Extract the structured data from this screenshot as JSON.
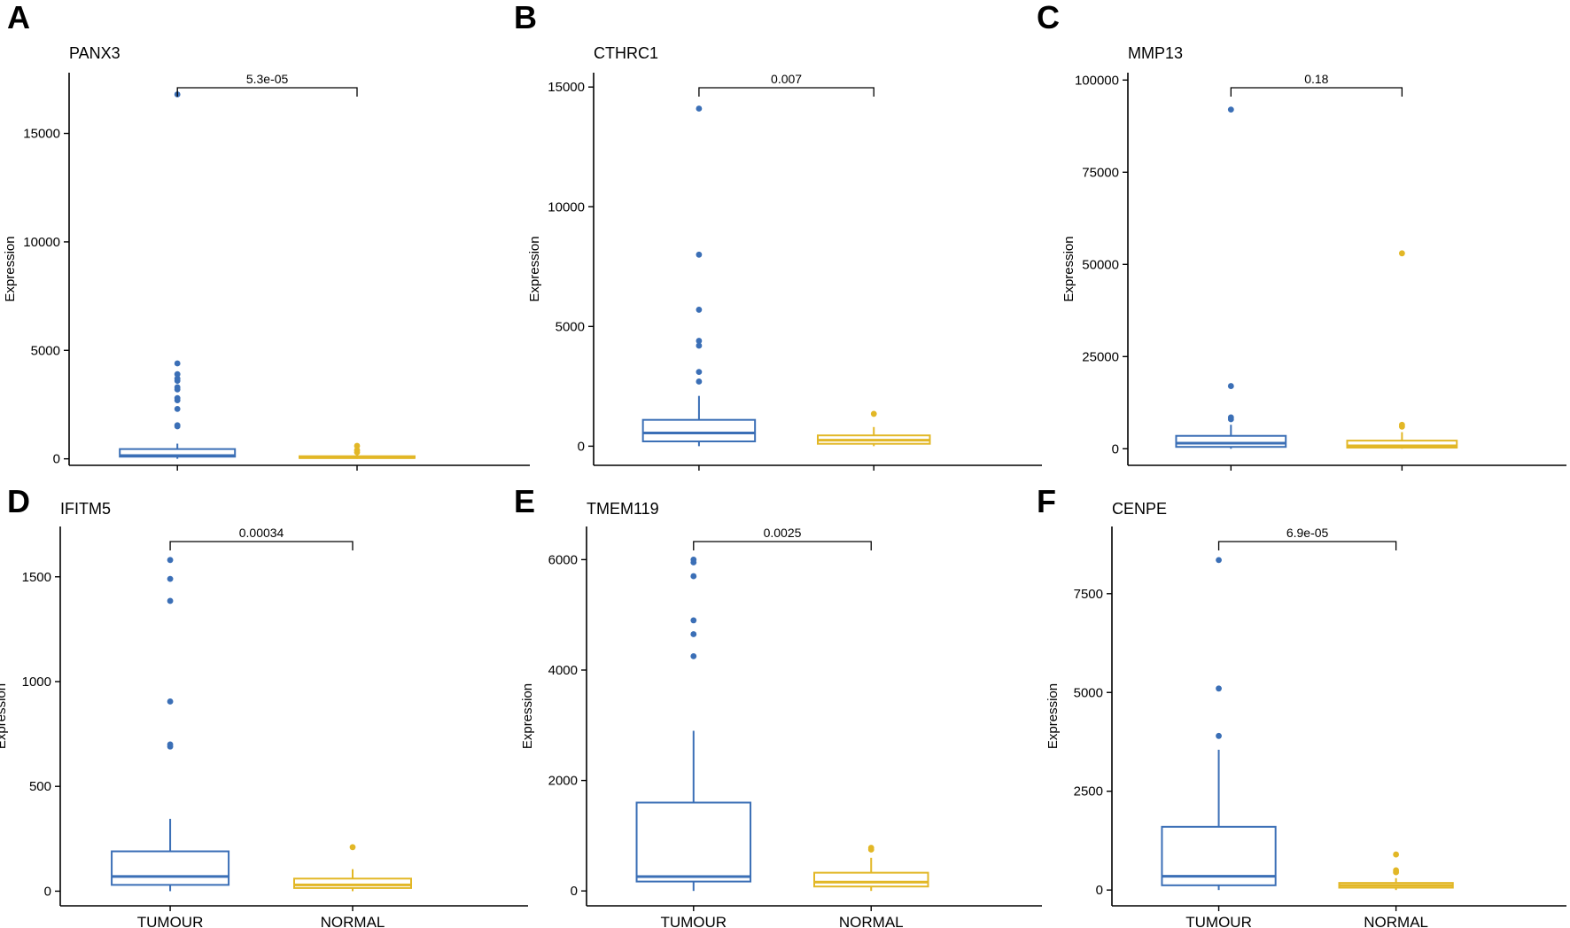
{
  "figure": {
    "colors": {
      "tumour": "#3b6fb6",
      "normal": "#e2b726",
      "axis": "#000000"
    }
  },
  "chart_data": [
    {
      "type": "box",
      "panel": "A",
      "title": "PANX3",
      "xlabel": "",
      "ylabel": "Expression",
      "ylim": [
        -300,
        17800
      ],
      "yticks": [
        0,
        5000,
        10000,
        15000
      ],
      "categories": [
        "TUMOUR",
        "NORMAL"
      ],
      "show_x_labels": false,
      "pvalue": "5.3e-05",
      "series": [
        {
          "name": "TUMOUR",
          "q1": 100,
          "median": 150,
          "q3": 450,
          "whisker_low": 0,
          "whisker_high": 700,
          "outliers": [
            1500,
            1550,
            2300,
            2700,
            2800,
            3200,
            3300,
            3600,
            3700,
            3900,
            4400,
            16800
          ]
        },
        {
          "name": "NORMAL",
          "q1": 40,
          "median": 60,
          "q3": 120,
          "whisker_low": 0,
          "whisker_high": 200,
          "outliers": [
            300,
            400,
            600
          ]
        }
      ]
    },
    {
      "type": "box",
      "panel": "B",
      "title": "CTHRC1",
      "xlabel": "",
      "ylabel": "Expression",
      "ylim": [
        -800,
        15600
      ],
      "yticks": [
        0,
        5000,
        10000,
        15000
      ],
      "categories": [
        "TUMOUR",
        "NORMAL"
      ],
      "show_x_labels": false,
      "pvalue": "0.007",
      "series": [
        {
          "name": "TUMOUR",
          "q1": 200,
          "median": 550,
          "q3": 1100,
          "whisker_low": 0,
          "whisker_high": 2100,
          "outliers": [
            2700,
            3100,
            4200,
            4400,
            5700,
            8000,
            14100
          ]
        },
        {
          "name": "NORMAL",
          "q1": 100,
          "median": 250,
          "q3": 450,
          "whisker_low": 0,
          "whisker_high": 800,
          "outliers": [
            1350
          ]
        }
      ]
    },
    {
      "type": "box",
      "panel": "C",
      "title": "MMP13",
      "xlabel": "",
      "ylabel": "Expression",
      "ylim": [
        -4500,
        102000
      ],
      "yticks": [
        0,
        25000,
        50000,
        75000,
        100000
      ],
      "categories": [
        "TUMOUR",
        "NORMAL"
      ],
      "show_x_labels": false,
      "pvalue": "0.18",
      "series": [
        {
          "name": "TUMOUR",
          "q1": 500,
          "median": 1500,
          "q3": 3500,
          "whisker_low": 0,
          "whisker_high": 6500,
          "outliers": [
            8000,
            8500,
            17000,
            92000
          ]
        },
        {
          "name": "NORMAL",
          "q1": 300,
          "median": 800,
          "q3": 2200,
          "whisker_low": 0,
          "whisker_high": 4500,
          "outliers": [
            6000,
            6500,
            53000
          ]
        }
      ]
    },
    {
      "type": "box",
      "panel": "D",
      "title": "IFITM5",
      "xlabel": "",
      "ylabel": "Expression",
      "ylim": [
        -70,
        1740
      ],
      "yticks": [
        0,
        500,
        1000,
        1500
      ],
      "categories": [
        "TUMOUR",
        "NORMAL"
      ],
      "show_x_labels": true,
      "pvalue": "0.00034",
      "series": [
        {
          "name": "TUMOUR",
          "q1": 30,
          "median": 70,
          "q3": 190,
          "whisker_low": 0,
          "whisker_high": 345,
          "outliers": [
            690,
            700,
            905,
            1385,
            1490,
            1580
          ]
        },
        {
          "name": "NORMAL",
          "q1": 15,
          "median": 30,
          "q3": 60,
          "whisker_low": 0,
          "whisker_high": 105,
          "outliers": [
            210
          ]
        }
      ]
    },
    {
      "type": "box",
      "panel": "E",
      "title": "TMEM119",
      "xlabel": "",
      "ylabel": "Expression",
      "ylim": [
        -270,
        6600
      ],
      "yticks": [
        0,
        2000,
        4000,
        6000
      ],
      "categories": [
        "TUMOUR",
        "NORMAL"
      ],
      "show_x_labels": true,
      "pvalue": "0.0025",
      "series": [
        {
          "name": "TUMOUR",
          "q1": 170,
          "median": 260,
          "q3": 1600,
          "whisker_low": 0,
          "whisker_high": 2900,
          "outliers": [
            4250,
            4650,
            4900,
            5700,
            5950,
            6000
          ]
        },
        {
          "name": "NORMAL",
          "q1": 80,
          "median": 160,
          "q3": 330,
          "whisker_low": 0,
          "whisker_high": 600,
          "outliers": [
            750,
            780
          ]
        }
      ]
    },
    {
      "type": "box",
      "panel": "F",
      "title": "CENPE",
      "xlabel": "",
      "ylabel": "Expression",
      "ylim": [
        -400,
        9200
      ],
      "yticks": [
        0,
        2500,
        5000,
        7500
      ],
      "categories": [
        "TUMOUR",
        "NORMAL"
      ],
      "show_x_labels": true,
      "pvalue": "6.9e-05",
      "series": [
        {
          "name": "TUMOUR",
          "q1": 120,
          "median": 350,
          "q3": 1600,
          "whisker_low": 0,
          "whisker_high": 3550,
          "outliers": [
            3900,
            5100,
            8350
          ]
        },
        {
          "name": "NORMAL",
          "q1": 60,
          "median": 120,
          "q3": 180,
          "whisker_low": 0,
          "whisker_high": 300,
          "outliers": [
            450,
            500,
            900
          ]
        }
      ]
    }
  ]
}
